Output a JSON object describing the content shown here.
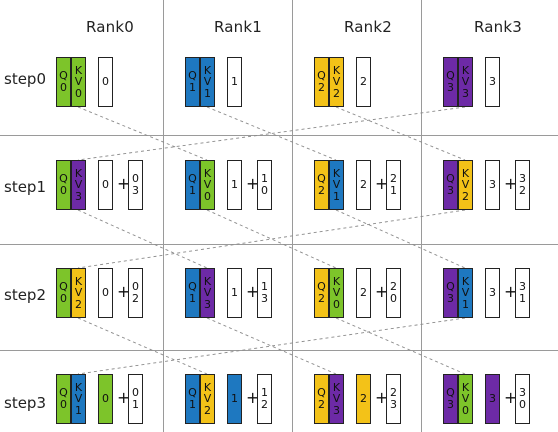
{
  "colors": {
    "green": "#7dc42a",
    "blue": "#1e78c0",
    "yellow": "#f3c218",
    "purple": "#6d2aa6",
    "grid": "#9a9a9a"
  },
  "ranks": [
    "Rank0",
    "Rank1",
    "Rank2",
    "Rank3"
  ],
  "steps": [
    "step0",
    "step1",
    "step2",
    "step3"
  ],
  "plus": "+",
  "cells": [
    [
      {
        "q": [
          "Q",
          "0"
        ],
        "q_color": "green",
        "kv": [
          "K",
          "V",
          "0"
        ],
        "kv_color": "green",
        "acc": [
          "0"
        ],
        "add": null
      },
      {
        "q": [
          "Q",
          "1"
        ],
        "q_color": "blue",
        "kv": [
          "K",
          "V",
          "1"
        ],
        "kv_color": "blue",
        "acc": [
          "1"
        ],
        "add": null
      },
      {
        "q": [
          "Q",
          "2"
        ],
        "q_color": "yellow",
        "kv": [
          "K",
          "V",
          "2"
        ],
        "kv_color": "yellow",
        "acc": [
          "2"
        ],
        "add": null
      },
      {
        "q": [
          "Q",
          "3"
        ],
        "q_color": "purple",
        "kv": [
          "K",
          "V",
          "3"
        ],
        "kv_color": "purple",
        "acc": [
          "3"
        ],
        "add": null
      }
    ],
    [
      {
        "q": [
          "Q",
          "0"
        ],
        "q_color": "green",
        "kv": [
          "K",
          "V",
          "3"
        ],
        "kv_color": "purple",
        "acc": [
          "0"
        ],
        "add": [
          "0",
          "3"
        ]
      },
      {
        "q": [
          "Q",
          "1"
        ],
        "q_color": "blue",
        "kv": [
          "K",
          "V",
          "0"
        ],
        "kv_color": "green",
        "acc": [
          "1"
        ],
        "add": [
          "1",
          "0"
        ]
      },
      {
        "q": [
          "Q",
          "2"
        ],
        "q_color": "yellow",
        "kv": [
          "K",
          "V",
          "1"
        ],
        "kv_color": "blue",
        "acc": [
          "2"
        ],
        "add": [
          "2",
          "1"
        ]
      },
      {
        "q": [
          "Q",
          "3"
        ],
        "q_color": "purple",
        "kv": [
          "K",
          "V",
          "2"
        ],
        "kv_color": "yellow",
        "acc": [
          "3"
        ],
        "add": [
          "3",
          "2"
        ]
      }
    ],
    [
      {
        "q": [
          "Q",
          "0"
        ],
        "q_color": "green",
        "kv": [
          "K",
          "V",
          "2"
        ],
        "kv_color": "yellow",
        "acc": [
          "0"
        ],
        "add": [
          "0",
          "2"
        ]
      },
      {
        "q": [
          "Q",
          "1"
        ],
        "q_color": "blue",
        "kv": [
          "K",
          "V",
          "3"
        ],
        "kv_color": "purple",
        "acc": [
          "1"
        ],
        "add": [
          "1",
          "3"
        ]
      },
      {
        "q": [
          "Q",
          "2"
        ],
        "q_color": "yellow",
        "kv": [
          "K",
          "V",
          "0"
        ],
        "kv_color": "green",
        "acc": [
          "2"
        ],
        "add": [
          "2",
          "0"
        ]
      },
      {
        "q": [
          "Q",
          "3"
        ],
        "q_color": "purple",
        "kv": [
          "K",
          "V",
          "1"
        ],
        "kv_color": "blue",
        "acc": [
          "3"
        ],
        "add": [
          "3",
          "1"
        ]
      }
    ],
    [
      {
        "q": [
          "Q",
          "0"
        ],
        "q_color": "green",
        "kv": [
          "K",
          "V",
          "1"
        ],
        "kv_color": "blue",
        "acc": [
          "0"
        ],
        "acc_color": "green",
        "add": [
          "0",
          "1"
        ]
      },
      {
        "q": [
          "Q",
          "1"
        ],
        "q_color": "blue",
        "kv": [
          "K",
          "V",
          "2"
        ],
        "kv_color": "yellow",
        "acc": [
          "1"
        ],
        "acc_color": "blue",
        "add": [
          "1",
          "2"
        ]
      },
      {
        "q": [
          "Q",
          "2"
        ],
        "q_color": "yellow",
        "kv": [
          "K",
          "V",
          "3"
        ],
        "kv_color": "purple",
        "acc": [
          "2"
        ],
        "acc_color": "yellow",
        "add": [
          "2",
          "3"
        ]
      },
      {
        "q": [
          "Q",
          "3"
        ],
        "q_color": "purple",
        "kv": [
          "K",
          "V",
          "0"
        ],
        "kv_color": "green",
        "acc": [
          "3"
        ],
        "acc_color": "purple",
        "add": [
          "3",
          "0"
        ]
      }
    ]
  ]
}
